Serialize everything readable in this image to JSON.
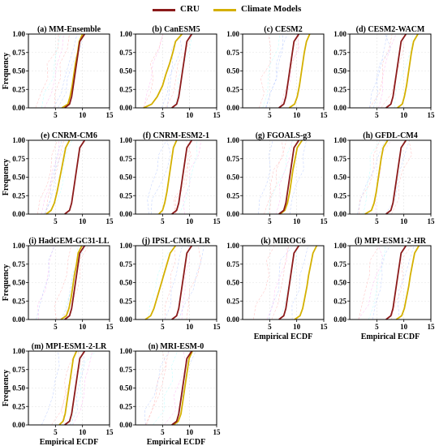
{
  "legend": {
    "cru_label": "CRU",
    "models_label": "Climate Models",
    "cru_color": "#8b1a1a",
    "models_color": "#d4b000",
    "faint_colors": [
      "#ffb3b3",
      "#b3c6ff",
      "#ffb3f0",
      "#b3ffff"
    ]
  },
  "axes": {
    "xlim": [
      0,
      15
    ],
    "ylim": [
      0,
      1
    ],
    "xticks": [
      "5",
      "10",
      "15"
    ],
    "yticks": [
      "0.00",
      "0.25",
      "0.50",
      "0.75",
      "1.00"
    ],
    "ylabel": "Frequency",
    "xlabel": "Empirical ECDF",
    "grid": true
  },
  "chart_data": [
    {
      "type": "line",
      "title": "(a) MM-Ensemble",
      "x_labels_shown": false,
      "series": [
        {
          "name": "CRU",
          "x": [
            6.7,
            7.6,
            8.0,
            8.3,
            8.6,
            8.9,
            9.2,
            9.5,
            10.4
          ],
          "y": [
            0.0,
            0.05,
            0.15,
            0.3,
            0.45,
            0.6,
            0.75,
            0.9,
            1.0
          ]
        },
        {
          "name": "Climate Models",
          "x": [
            6.2,
            7.3,
            7.7,
            8.1,
            8.4,
            8.7,
            9.1,
            9.4,
            10.0
          ],
          "y": [
            0.0,
            0.05,
            0.15,
            0.3,
            0.45,
            0.6,
            0.75,
            0.9,
            1.0
          ]
        }
      ]
    },
    {
      "type": "line",
      "title": "(b) CanESM5",
      "x_labels_shown": false,
      "series": [
        {
          "name": "CRU",
          "x": [
            6.7,
            7.6,
            8.0,
            8.3,
            8.6,
            8.9,
            9.2,
            9.5,
            10.4
          ],
          "y": [
            0.0,
            0.05,
            0.15,
            0.3,
            0.45,
            0.6,
            0.75,
            0.9,
            1.0
          ]
        },
        {
          "name": "Climate Models",
          "x": [
            1.5,
            3.0,
            4.0,
            5.0,
            5.6,
            6.3,
            6.9,
            7.4,
            8.6
          ],
          "y": [
            0.0,
            0.05,
            0.15,
            0.3,
            0.45,
            0.6,
            0.75,
            0.9,
            1.0
          ]
        }
      ]
    },
    {
      "type": "line",
      "title": "(c) CESM2",
      "x_labels_shown": false,
      "series": [
        {
          "name": "CRU",
          "x": [
            6.7,
            7.6,
            8.0,
            8.3,
            8.6,
            8.9,
            9.2,
            9.5,
            10.4
          ],
          "y": [
            0.0,
            0.05,
            0.15,
            0.3,
            0.45,
            0.6,
            0.75,
            0.9,
            1.0
          ]
        },
        {
          "name": "Climate Models",
          "x": [
            8.6,
            9.6,
            10.1,
            10.5,
            10.8,
            11.1,
            11.4,
            11.8,
            12.4
          ],
          "y": [
            0.0,
            0.05,
            0.15,
            0.3,
            0.45,
            0.6,
            0.75,
            0.9,
            1.0
          ]
        }
      ]
    },
    {
      "type": "line",
      "title": "(d) CESM2-WACM",
      "x_labels_shown": false,
      "series": [
        {
          "name": "CRU",
          "x": [
            6.7,
            7.6,
            8.0,
            8.3,
            8.6,
            8.9,
            9.2,
            9.5,
            10.4
          ],
          "y": [
            0.0,
            0.05,
            0.15,
            0.3,
            0.45,
            0.6,
            0.75,
            0.9,
            1.0
          ]
        },
        {
          "name": "Climate Models",
          "x": [
            8.8,
            9.7,
            10.1,
            10.5,
            10.8,
            11.1,
            11.4,
            11.8,
            12.6
          ],
          "y": [
            0.0,
            0.05,
            0.15,
            0.3,
            0.45,
            0.6,
            0.75,
            0.9,
            1.0
          ]
        }
      ]
    },
    {
      "type": "line",
      "title": "(e) CNRM-CM6",
      "x_labels_shown": false,
      "series": [
        {
          "name": "CRU",
          "x": [
            6.7,
            7.6,
            8.0,
            8.3,
            8.6,
            8.9,
            9.2,
            9.5,
            10.4
          ],
          "y": [
            0.0,
            0.05,
            0.15,
            0.3,
            0.45,
            0.6,
            0.75,
            0.9,
            1.0
          ]
        },
        {
          "name": "Climate Models",
          "x": [
            3.3,
            4.2,
            4.8,
            5.3,
            5.7,
            6.1,
            6.5,
            6.9,
            7.6
          ],
          "y": [
            0.0,
            0.05,
            0.15,
            0.3,
            0.45,
            0.6,
            0.75,
            0.9,
            1.0
          ]
        }
      ]
    },
    {
      "type": "line",
      "title": "(f) CNRM-ESM2-1",
      "x_labels_shown": false,
      "series": [
        {
          "name": "CRU",
          "x": [
            6.7,
            7.6,
            8.0,
            8.3,
            8.6,
            8.9,
            9.2,
            9.5,
            10.4
          ],
          "y": [
            0.0,
            0.05,
            0.15,
            0.3,
            0.45,
            0.6,
            0.75,
            0.9,
            1.0
          ]
        },
        {
          "name": "Climate Models",
          "x": [
            4.3,
            5.0,
            5.4,
            5.8,
            6.1,
            6.4,
            6.7,
            7.0,
            7.6
          ],
          "y": [
            0.0,
            0.05,
            0.15,
            0.3,
            0.45,
            0.6,
            0.75,
            0.9,
            1.0
          ]
        }
      ]
    },
    {
      "type": "line",
      "title": "(g) FGOALS-g3",
      "x_labels_shown": false,
      "series": [
        {
          "name": "CRU",
          "x": [
            6.7,
            7.6,
            8.0,
            8.3,
            8.6,
            8.9,
            9.2,
            9.5,
            10.4
          ],
          "y": [
            0.0,
            0.05,
            0.15,
            0.3,
            0.45,
            0.6,
            0.75,
            0.9,
            1.0
          ]
        },
        {
          "name": "Climate Models",
          "x": [
            6.9,
            7.8,
            8.3,
            8.7,
            9.0,
            9.3,
            9.7,
            10.1,
            11.0
          ],
          "y": [
            0.0,
            0.05,
            0.15,
            0.3,
            0.45,
            0.6,
            0.75,
            0.9,
            1.0
          ]
        }
      ]
    },
    {
      "type": "line",
      "title": "(h) GFDL-CM4",
      "x_labels_shown": false,
      "series": [
        {
          "name": "CRU",
          "x": [
            6.7,
            7.6,
            8.0,
            8.3,
            8.6,
            8.9,
            9.2,
            9.5,
            10.4
          ],
          "y": [
            0.0,
            0.05,
            0.15,
            0.3,
            0.45,
            0.6,
            0.75,
            0.9,
            1.0
          ]
        },
        {
          "name": "Climate Models",
          "x": [
            2.8,
            4.0,
            4.5,
            4.9,
            5.2,
            5.5,
            5.8,
            6.2,
            7.0
          ],
          "y": [
            0.0,
            0.05,
            0.15,
            0.3,
            0.45,
            0.6,
            0.75,
            0.9,
            1.0
          ]
        }
      ]
    },
    {
      "type": "line",
      "title": "(i) HadGEM-GC31-LL",
      "x_labels_shown": false,
      "series": [
        {
          "name": "CRU",
          "x": [
            6.7,
            7.6,
            8.0,
            8.3,
            8.6,
            8.9,
            9.2,
            9.5,
            10.4
          ],
          "y": [
            0.0,
            0.05,
            0.15,
            0.3,
            0.45,
            0.6,
            0.75,
            0.9,
            1.0
          ]
        },
        {
          "name": "Climate Models",
          "x": [
            6.0,
            7.0,
            7.5,
            7.9,
            8.2,
            8.5,
            8.9,
            9.2,
            9.9
          ],
          "y": [
            0.0,
            0.05,
            0.15,
            0.3,
            0.45,
            0.6,
            0.75,
            0.9,
            1.0
          ]
        }
      ]
    },
    {
      "type": "line",
      "title": "(j) IPSL-CM6A-LR",
      "x_labels_shown": false,
      "series": [
        {
          "name": "CRU",
          "x": [
            6.7,
            7.6,
            8.0,
            8.3,
            8.6,
            8.9,
            9.2,
            9.5,
            10.4
          ],
          "y": [
            0.0,
            0.05,
            0.15,
            0.3,
            0.45,
            0.6,
            0.75,
            0.9,
            1.0
          ]
        },
        {
          "name": "Climate Models",
          "x": [
            1.8,
            2.8,
            3.4,
            4.0,
            4.6,
            5.2,
            5.8,
            6.4,
            7.4
          ],
          "y": [
            0.0,
            0.05,
            0.15,
            0.3,
            0.45,
            0.6,
            0.75,
            0.9,
            1.0
          ]
        }
      ]
    },
    {
      "type": "line",
      "title": "(k) MIROC6",
      "x_labels_shown": true,
      "series": [
        {
          "name": "CRU",
          "x": [
            6.7,
            7.6,
            8.0,
            8.3,
            8.6,
            8.9,
            9.2,
            9.5,
            10.4
          ],
          "y": [
            0.0,
            0.05,
            0.15,
            0.3,
            0.45,
            0.6,
            0.75,
            0.9,
            1.0
          ]
        },
        {
          "name": "Climate Models",
          "x": [
            9.6,
            10.6,
            11.1,
            11.5,
            11.9,
            12.2,
            12.6,
            13.0,
            13.7
          ],
          "y": [
            0.0,
            0.05,
            0.15,
            0.3,
            0.45,
            0.6,
            0.75,
            0.9,
            1.0
          ]
        }
      ]
    },
    {
      "type": "line",
      "title": "(l) MPI-ESM1-2-HR",
      "x_labels_shown": true,
      "series": [
        {
          "name": "CRU",
          "x": [
            6.7,
            7.6,
            8.0,
            8.3,
            8.6,
            8.9,
            9.2,
            9.5,
            10.4
          ],
          "y": [
            0.0,
            0.05,
            0.15,
            0.3,
            0.45,
            0.6,
            0.75,
            0.9,
            1.0
          ]
        },
        {
          "name": "Climate Models",
          "x": [
            8.6,
            9.6,
            10.1,
            10.5,
            10.9,
            11.2,
            11.6,
            12.0,
            12.8
          ],
          "y": [
            0.0,
            0.05,
            0.15,
            0.3,
            0.45,
            0.6,
            0.75,
            0.9,
            1.0
          ]
        }
      ]
    },
    {
      "type": "line",
      "title": "(m) MPI-ESM1-2-LR",
      "x_labels_shown": true,
      "series": [
        {
          "name": "CRU",
          "x": [
            6.7,
            7.6,
            8.0,
            8.3,
            8.6,
            8.9,
            9.2,
            9.5,
            10.4
          ],
          "y": [
            0.0,
            0.05,
            0.15,
            0.3,
            0.45,
            0.6,
            0.75,
            0.9,
            1.0
          ]
        },
        {
          "name": "Climate Models",
          "x": [
            5.7,
            6.4,
            6.8,
            7.1,
            7.4,
            7.7,
            8.0,
            8.3,
            8.9
          ],
          "y": [
            0.0,
            0.05,
            0.15,
            0.3,
            0.45,
            0.6,
            0.75,
            0.9,
            1.0
          ]
        }
      ]
    },
    {
      "type": "line",
      "title": "(n) MRI-ESM-0",
      "x_labels_shown": true,
      "series": [
        {
          "name": "CRU",
          "x": [
            6.7,
            7.6,
            8.0,
            8.3,
            8.6,
            8.9,
            9.2,
            9.5,
            10.4
          ],
          "y": [
            0.0,
            0.05,
            0.15,
            0.3,
            0.45,
            0.6,
            0.75,
            0.9,
            1.0
          ]
        },
        {
          "name": "Climate Models",
          "x": [
            7.0,
            7.9,
            8.4,
            8.7,
            9.0,
            9.3,
            9.6,
            9.9,
            10.5
          ],
          "y": [
            0.0,
            0.05,
            0.15,
            0.3,
            0.45,
            0.6,
            0.75,
            0.9,
            1.0
          ]
        }
      ]
    }
  ]
}
